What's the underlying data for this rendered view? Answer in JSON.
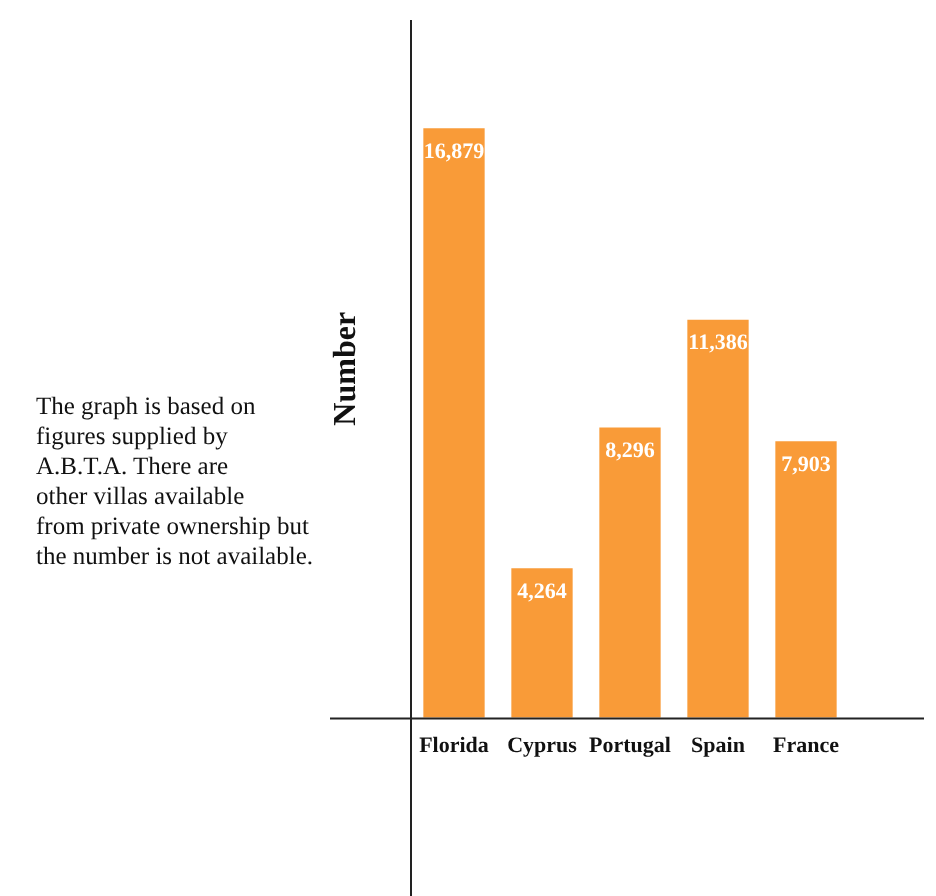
{
  "chart_data": {
    "type": "bar",
    "ylabel": "Number",
    "categories": [
      "Florida",
      "Cyprus",
      "Portugal",
      "Spain",
      "France"
    ],
    "values": [
      16879,
      4264,
      8296,
      11386,
      7903
    ],
    "color": "#f99b38",
    "value_labels": [
      "16,879",
      "4,264",
      "8,296",
      "11,386",
      "7,903"
    ],
    "grid": false,
    "legend": false,
    "tick_labels": "x",
    "annotations": [
      "The graph is based on\nfigures supplied by\nA.B.T.A. There are\nother villas available\nfrom private ownership but\nthe number is not available."
    ]
  }
}
